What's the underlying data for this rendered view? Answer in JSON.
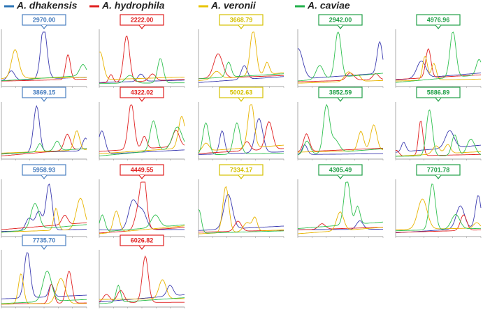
{
  "legend": [
    {
      "name": "A. dhakensis",
      "color": "#2e75b6"
    },
    {
      "name": "A. hydrophila",
      "color": "#e02020"
    },
    {
      "name": "A. veronii",
      "color": "#e8c400"
    },
    {
      "name": "A. caviae",
      "color": "#22b04b"
    }
  ],
  "columns": [
    {
      "color": "#4a7fc0",
      "panels": [
        "2970.00",
        "3869.15",
        "5958.93",
        "7735.70"
      ]
    },
    {
      "color": "#e02020",
      "panels": [
        "2222.00",
        "4322.02",
        "4449.55",
        "6026.82"
      ]
    },
    {
      "color": "#d4c000",
      "panels": [
        "3668.79",
        "5002.63",
        "7334.17"
      ]
    },
    {
      "color": "#22a048",
      "panels": [
        "2942.00",
        "3852.59",
        "4305.49"
      ]
    },
    {
      "color": "#22a048",
      "panels": [
        "4976.96",
        "5886.89",
        "7701.78"
      ]
    }
  ]
}
